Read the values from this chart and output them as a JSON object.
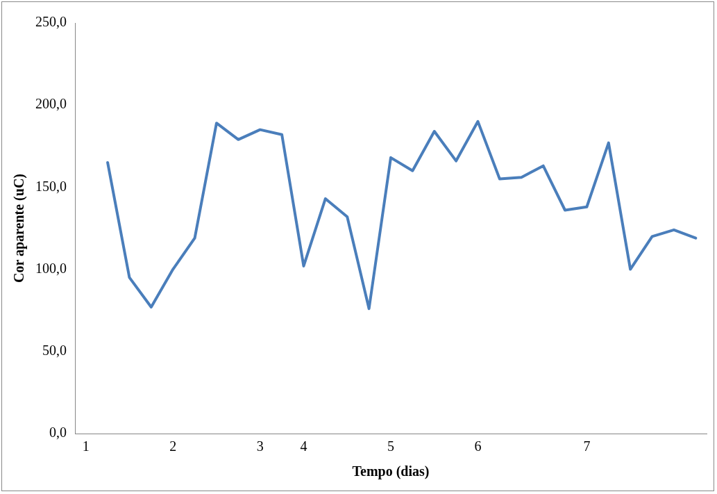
{
  "chart_data": {
    "type": "line",
    "xlabel": "Tempo (dias)",
    "ylabel": "Cor aparente (uC)",
    "categories": [
      "1",
      null,
      null,
      null,
      "2",
      null,
      null,
      null,
      "3",
      null,
      "4",
      null,
      null,
      null,
      "5",
      null,
      null,
      null,
      "6",
      null,
      null,
      null,
      null,
      "7",
      null,
      null,
      null,
      null,
      null
    ],
    "series": [
      {
        "color": "#4a7ebb",
        "values": [
          null,
          165,
          95,
          77,
          100,
          119,
          189,
          179,
          185,
          182,
          102,
          143,
          132,
          76,
          168,
          160,
          184,
          166,
          190,
          155,
          156,
          163,
          136,
          138,
          177,
          100,
          120,
          124,
          119
        ]
      }
    ],
    "ylim": [
      0,
      250
    ],
    "yticks": [
      {
        "value": 0,
        "label": "0,0"
      },
      {
        "value": 50,
        "label": "50,0"
      },
      {
        "value": 100,
        "label": "100,0"
      },
      {
        "value": 150,
        "label": "150,0"
      },
      {
        "value": 200,
        "label": "200,0"
      },
      {
        "value": 250,
        "label": "250,0"
      }
    ],
    "grid": false,
    "legend": false,
    "marker": "none",
    "line_style": "solid"
  }
}
